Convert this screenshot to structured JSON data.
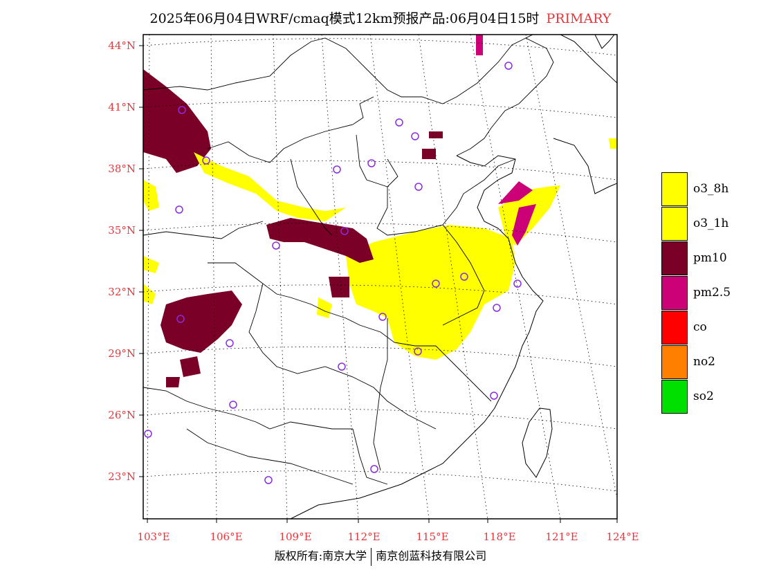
{
  "title": {
    "main": "2025年06月04日WRF/cmaq模式12km预报产品:06月04日15时",
    "tag": "PRIMARY"
  },
  "footer": {
    "left": "版权所有:南京大学",
    "right": "南京创蓝科技有限公司"
  },
  "axes": {
    "lat_labels": [
      "44°N",
      "41°N",
      "38°N",
      "35°N",
      "32°N",
      "29°N",
      "26°N",
      "23°N"
    ],
    "lon_labels": [
      "103°E",
      "106°E",
      "109°E",
      "112°E",
      "115°E",
      "118°E",
      "121°E",
      "124°E"
    ]
  },
  "legend": [
    {
      "label": "o3_8h",
      "color": "#ffff00"
    },
    {
      "label": "o3_1h",
      "color": "#ffff00"
    },
    {
      "label": "pm10",
      "color": "#7b0028"
    },
    {
      "label": "pm2.5",
      "color": "#cc0077"
    },
    {
      "label": "co",
      "color": "#ff0000"
    },
    {
      "label": "no2",
      "color": "#ff7f00"
    },
    {
      "label": "so2",
      "color": "#00e000"
    }
  ],
  "colors": {
    "o3": "#ffff00",
    "pm10": "#7b0028",
    "pm25": "#cc0077",
    "station": "#8a2be2",
    "label": "#e8353a"
  }
}
